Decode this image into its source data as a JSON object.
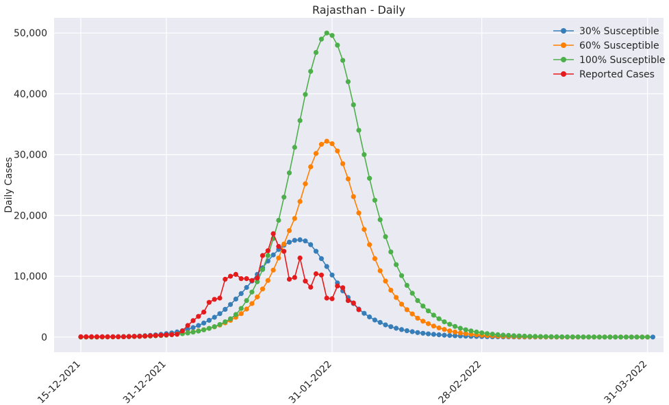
{
  "chart_data": {
    "type": "line",
    "title": "Rajasthan - Daily",
    "xlabel": "",
    "ylabel": "Daily Cases",
    "x_start": "15-12-2021",
    "x_ticks": [
      "15-12-2021",
      "31-12-2021",
      "31-01-2022",
      "28-02-2022",
      "31-03-2022"
    ],
    "y_ticks": [
      "0",
      "10,000",
      "20,000",
      "30,000",
      "40,000",
      "50,000"
    ],
    "xlim": [
      "10-12-2021",
      "03-04-2022"
    ],
    "ylim": [
      -2500,
      52500
    ],
    "grid": true,
    "legend_position": "top-right",
    "series": [
      {
        "name": "30% Susceptible",
        "color": "#377eb8",
        "x_range": [
          "15-12-2021",
          "31-03-2022"
        ],
        "values": [
          0,
          0,
          0,
          0,
          10,
          20,
          40,
          60,
          80,
          100,
          130,
          170,
          220,
          280,
          350,
          440,
          550,
          680,
          840,
          1040,
          1280,
          1560,
          1900,
          2300,
          2750,
          3250,
          3850,
          4550,
          5350,
          6250,
          7150,
          8150,
          9200,
          10300,
          11400,
          12500,
          13500,
          14400,
          15100,
          15600,
          15900,
          16000,
          15800,
          15200,
          14100,
          12900,
          11600,
          10200,
          8900,
          7600,
          6500,
          5500,
          4600,
          3900,
          3300,
          2800,
          2400,
          2000,
          1700,
          1450,
          1230,
          1040,
          880,
          740,
          620,
          520,
          440,
          370,
          310,
          260,
          220,
          180,
          150,
          120,
          100,
          80,
          60,
          50,
          40,
          30,
          20,
          10,
          5,
          0,
          0,
          0,
          0,
          0,
          0,
          0,
          0,
          0,
          0,
          0,
          0,
          0,
          0,
          0,
          0,
          0,
          0,
          0,
          0,
          0,
          0,
          0,
          0,
          0
        ]
      },
      {
        "name": "60% Susceptible",
        "color": "#ff7f00",
        "x_range": [
          "15-12-2021",
          "31-03-2022"
        ],
        "values": [
          0,
          0,
          0,
          0,
          10,
          20,
          30,
          40,
          60,
          80,
          100,
          120,
          150,
          190,
          230,
          280,
          340,
          410,
          490,
          590,
          710,
          850,
          1010,
          1200,
          1420,
          1680,
          1980,
          2330,
          2750,
          3250,
          3850,
          4600,
          5500,
          6600,
          7900,
          9300,
          11000,
          13000,
          15300,
          17500,
          19500,
          22300,
          25200,
          28000,
          30200,
          31700,
          32200,
          31800,
          30600,
          28500,
          26000,
          23100,
          20400,
          17700,
          15200,
          12900,
          10900,
          9200,
          7700,
          6500,
          5400,
          4500,
          3800,
          3100,
          2600,
          2200,
          1800,
          1500,
          1250,
          1000,
          820,
          670,
          550,
          450,
          370,
          300,
          240,
          200,
          160,
          130,
          100,
          80,
          60,
          50,
          40,
          30,
          20,
          15,
          10,
          5,
          0,
          0,
          0,
          0,
          0,
          0,
          0,
          0,
          0,
          0,
          0,
          0,
          0,
          0,
          0,
          0,
          0
        ]
      },
      {
        "name": "100% Susceptible",
        "color": "#4daf4a",
        "x_range": [
          "15-12-2021",
          "31-03-2022"
        ],
        "values": [
          0,
          0,
          0,
          0,
          10,
          20,
          30,
          40,
          50,
          60,
          80,
          100,
          130,
          160,
          200,
          250,
          300,
          370,
          450,
          550,
          670,
          810,
          980,
          1180,
          1420,
          1700,
          2050,
          2500,
          3000,
          3700,
          4700,
          6000,
          7400,
          9100,
          11100,
          13400,
          16200,
          19200,
          23000,
          27000,
          31200,
          35600,
          39900,
          43700,
          46800,
          49000,
          50000,
          49600,
          48000,
          45500,
          42000,
          38200,
          34000,
          30000,
          26100,
          22500,
          19300,
          16500,
          14000,
          11900,
          10100,
          8500,
          7200,
          6000,
          5100,
          4300,
          3600,
          3000,
          2500,
          2100,
          1750,
          1450,
          1200,
          1000,
          830,
          690,
          570,
          470,
          390,
          320,
          270,
          220,
          180,
          150,
          120,
          100,
          80,
          70,
          60,
          50,
          40,
          30,
          25,
          20,
          15,
          10,
          10,
          5,
          5,
          0,
          0,
          0,
          0,
          0,
          0,
          0,
          0
        ]
      },
      {
        "name": "Reported Cases",
        "color": "#e41a1c",
        "x_range": [
          "15-12-2021",
          "08-02-2022"
        ],
        "values": [
          50,
          50,
          50,
          50,
          50,
          50,
          50,
          50,
          50,
          80,
          100,
          120,
          150,
          200,
          250,
          300,
          350,
          400,
          450,
          1000,
          1900,
          2700,
          3400,
          4100,
          5700,
          6200,
          6400,
          9500,
          10000,
          10300,
          9600,
          9600,
          9300,
          9700,
          13400,
          14200,
          17000,
          14900,
          14100,
          9500,
          9800,
          13000,
          9200,
          8200,
          10400,
          10200,
          6400,
          6300,
          8400,
          8100,
          6000,
          5600,
          4500
        ]
      }
    ]
  }
}
